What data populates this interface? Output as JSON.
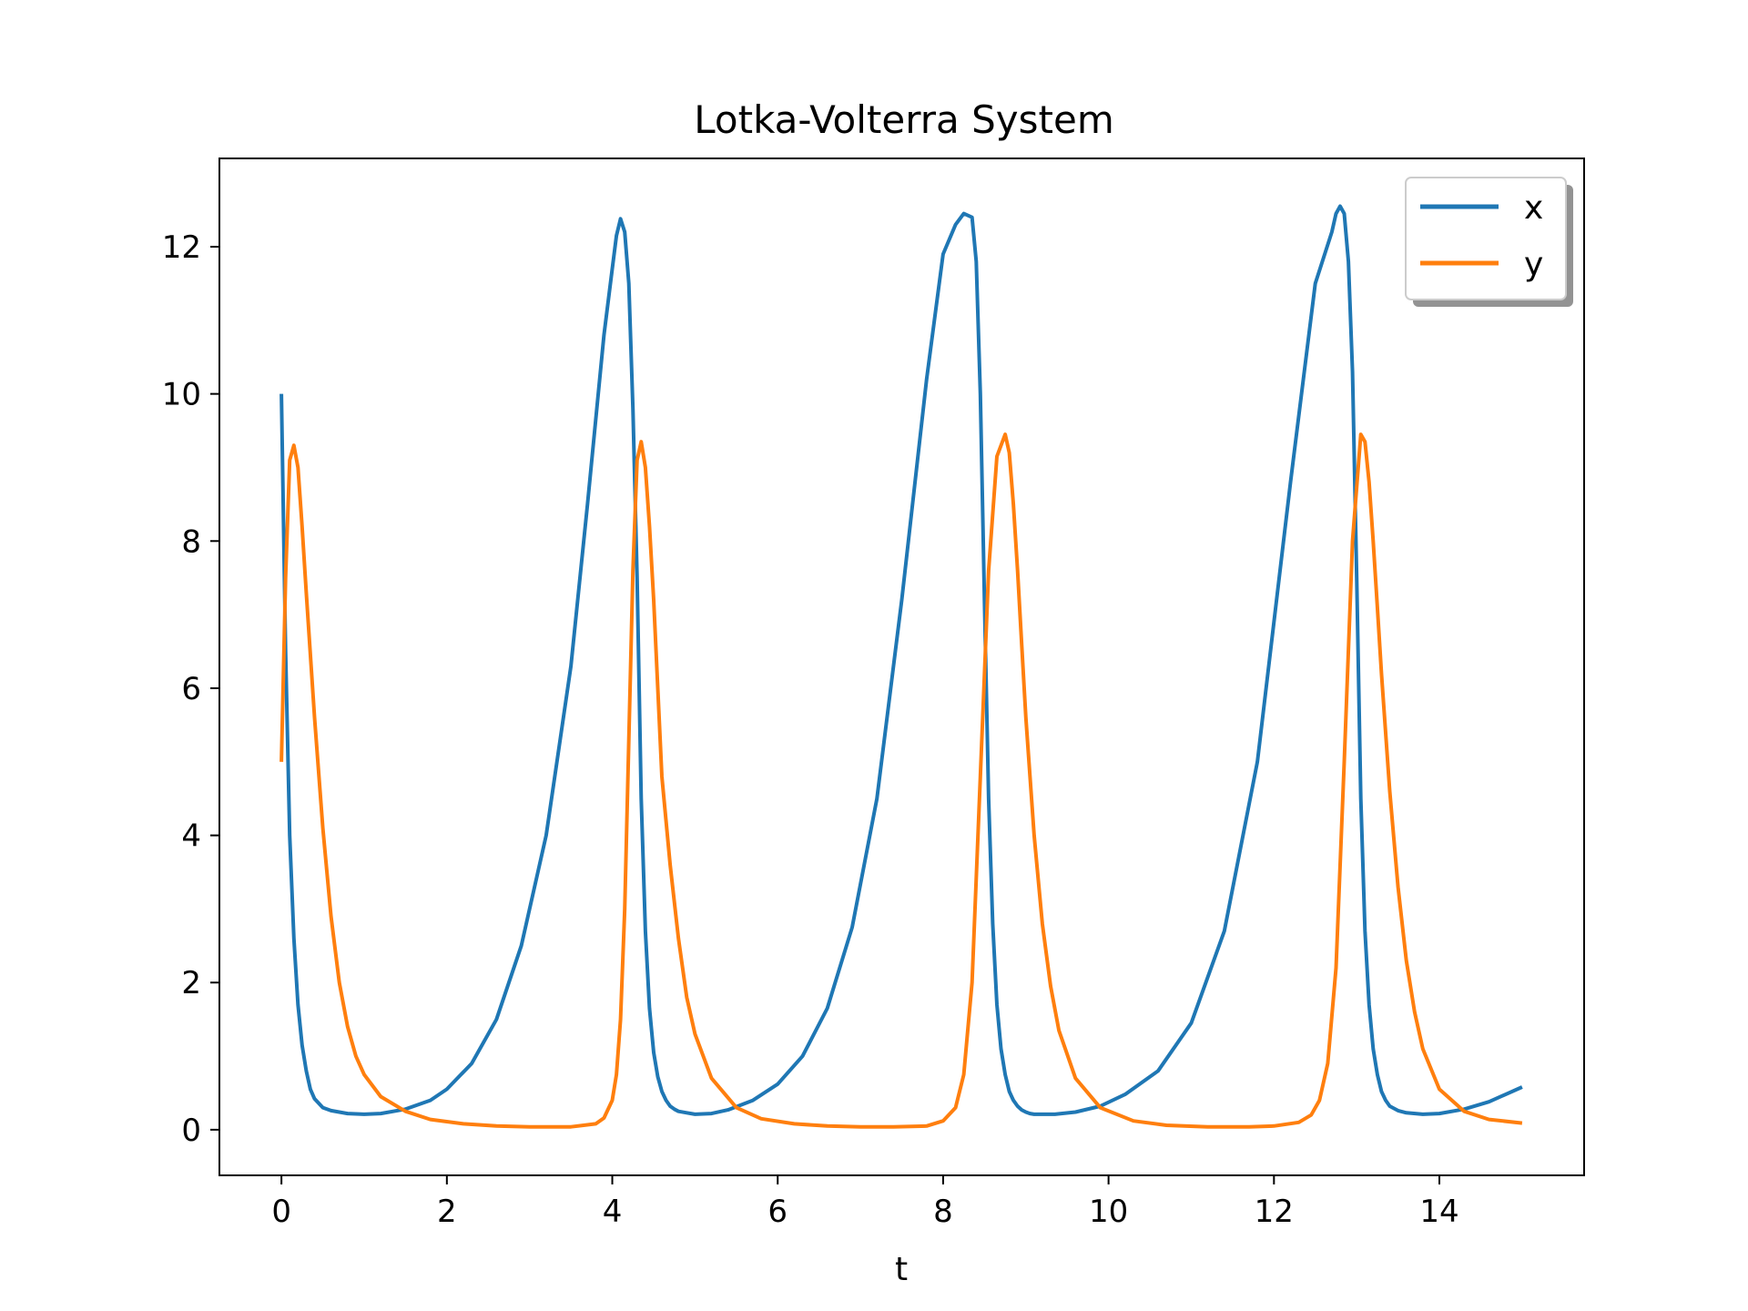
{
  "chart_data": {
    "type": "line",
    "title": "Lotka-Volterra System",
    "xlabel": "t",
    "ylabel": "",
    "xlim": [
      -0.75,
      15.75
    ],
    "ylim": [
      -0.62,
      13.2
    ],
    "xticks": [
      0,
      2,
      4,
      6,
      8,
      10,
      12,
      14
    ],
    "yticks": [
      0,
      2,
      4,
      6,
      8,
      10,
      12
    ],
    "grid": false,
    "legend": "top-right",
    "series": [
      {
        "name": "x",
        "color": "#1f77b4",
        "x": [
          0,
          0.05,
          0.1,
          0.15,
          0.2,
          0.25,
          0.3,
          0.35,
          0.4,
          0.5,
          0.6,
          0.8,
          1.0,
          1.2,
          1.5,
          1.8,
          2.0,
          2.3,
          2.6,
          2.9,
          3.2,
          3.5,
          3.7,
          3.9,
          4.0,
          4.05,
          4.1,
          4.15,
          4.2,
          4.25,
          4.3,
          4.35,
          4.4,
          4.45,
          4.5,
          4.55,
          4.6,
          4.65,
          4.7,
          4.75,
          4.8,
          4.9,
          5.0,
          5.2,
          5.4,
          5.7,
          6.0,
          6.3,
          6.6,
          6.9,
          7.2,
          7.5,
          7.8,
          8.0,
          8.15,
          8.25,
          8.35,
          8.4,
          8.45,
          8.5,
          8.55,
          8.6,
          8.65,
          8.7,
          8.75,
          8.8,
          8.85,
          8.9,
          8.95,
          9.0,
          9.05,
          9.1,
          9.2,
          9.35,
          9.6,
          9.9,
          10.2,
          10.6,
          11.0,
          11.4,
          11.8,
          12.2,
          12.5,
          12.7,
          12.75,
          12.8,
          12.85,
          12.9,
          12.95,
          13.0,
          13.05,
          13.1,
          13.15,
          13.2,
          13.25,
          13.3,
          13.35,
          13.4,
          13.5,
          13.6,
          13.8,
          14.0,
          14.3,
          14.6,
          15.0
        ],
        "values": [
          10.0,
          6.5,
          4.0,
          2.6,
          1.7,
          1.15,
          0.8,
          0.55,
          0.42,
          0.3,
          0.26,
          0.22,
          0.21,
          0.22,
          0.28,
          0.4,
          0.55,
          0.9,
          1.5,
          2.5,
          4.0,
          6.3,
          8.5,
          10.8,
          11.7,
          12.15,
          12.38,
          12.2,
          11.5,
          9.8,
          7.5,
          4.5,
          2.7,
          1.65,
          1.05,
          0.72,
          0.52,
          0.4,
          0.32,
          0.28,
          0.25,
          0.23,
          0.21,
          0.22,
          0.27,
          0.4,
          0.62,
          1.0,
          1.65,
          2.75,
          4.5,
          7.2,
          10.2,
          11.9,
          12.3,
          12.45,
          12.4,
          11.8,
          10.0,
          7.2,
          4.5,
          2.8,
          1.7,
          1.1,
          0.75,
          0.52,
          0.4,
          0.32,
          0.27,
          0.24,
          0.22,
          0.21,
          0.21,
          0.21,
          0.24,
          0.32,
          0.48,
          0.8,
          1.45,
          2.7,
          5.0,
          8.8,
          11.5,
          12.2,
          12.45,
          12.55,
          12.45,
          11.8,
          10.3,
          7.5,
          4.5,
          2.7,
          1.7,
          1.1,
          0.75,
          0.52,
          0.4,
          0.32,
          0.26,
          0.23,
          0.21,
          0.22,
          0.28,
          0.38,
          0.58
        ]
      },
      {
        "name": "y",
        "color": "#ff7f0e",
        "x": [
          0,
          0.05,
          0.1,
          0.15,
          0.2,
          0.25,
          0.3,
          0.4,
          0.5,
          0.6,
          0.7,
          0.8,
          0.9,
          1.0,
          1.2,
          1.5,
          1.8,
          2.2,
          2.6,
          3.0,
          3.5,
          3.8,
          3.9,
          4.0,
          4.05,
          4.1,
          4.15,
          4.2,
          4.25,
          4.3,
          4.35,
          4.4,
          4.45,
          4.5,
          4.55,
          4.6,
          4.7,
          4.8,
          4.9,
          5.0,
          5.2,
          5.5,
          5.8,
          6.2,
          6.6,
          7.0,
          7.4,
          7.8,
          8.0,
          8.15,
          8.25,
          8.35,
          8.45,
          8.55,
          8.65,
          8.75,
          8.8,
          8.85,
          8.9,
          8.95,
          9.0,
          9.1,
          9.2,
          9.3,
          9.4,
          9.6,
          9.9,
          10.3,
          10.7,
          11.2,
          11.7,
          12.0,
          12.3,
          12.45,
          12.55,
          12.65,
          12.75,
          12.85,
          12.95,
          13.05,
          13.1,
          13.15,
          13.2,
          13.25,
          13.3,
          13.4,
          13.5,
          13.6,
          13.7,
          13.8,
          14.0,
          14.3,
          14.6,
          15.0
        ],
        "values": [
          5.0,
          7.5,
          9.1,
          9.3,
          9.0,
          8.2,
          7.3,
          5.6,
          4.1,
          2.9,
          2.0,
          1.4,
          1.0,
          0.75,
          0.45,
          0.25,
          0.14,
          0.08,
          0.05,
          0.04,
          0.04,
          0.08,
          0.16,
          0.4,
          0.75,
          1.5,
          3.0,
          5.3,
          7.6,
          9.1,
          9.35,
          9.0,
          8.2,
          7.2,
          6.0,
          4.8,
          3.6,
          2.6,
          1.8,
          1.3,
          0.7,
          0.3,
          0.15,
          0.08,
          0.05,
          0.04,
          0.04,
          0.05,
          0.12,
          0.3,
          0.75,
          2.0,
          4.8,
          7.6,
          9.15,
          9.45,
          9.2,
          8.5,
          7.6,
          6.6,
          5.6,
          4.0,
          2.8,
          1.95,
          1.35,
          0.7,
          0.3,
          0.12,
          0.06,
          0.04,
          0.04,
          0.05,
          0.1,
          0.2,
          0.4,
          0.9,
          2.2,
          5.0,
          8.0,
          9.45,
          9.35,
          8.8,
          8.0,
          7.1,
          6.2,
          4.6,
          3.3,
          2.3,
          1.6,
          1.1,
          0.55,
          0.25,
          0.14,
          0.09
        ]
      }
    ]
  }
}
